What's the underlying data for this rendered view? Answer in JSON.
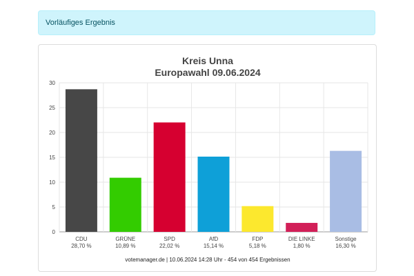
{
  "alert": {
    "text": "Vorläufiges Ergebnis"
  },
  "chart_data": {
    "type": "bar",
    "title": "Kreis Unna",
    "subtitle": "Europawahl 09.06.2024",
    "categories": [
      "CDU",
      "GRÜNE",
      "SPD",
      "AfD",
      "FDP",
      "DIE LINKE",
      "Sonstige"
    ],
    "value_labels": [
      "28,70 %",
      "10,89 %",
      "22,02 %",
      "15,14 %",
      "5,18 %",
      "1,80 %",
      "16,30 %"
    ],
    "values": [
      28.7,
      10.89,
      22.02,
      15.14,
      5.18,
      1.8,
      16.3
    ],
    "colors": [
      "#474747",
      "#33cc00",
      "#d60030",
      "#0ea0d8",
      "#fce82e",
      "#d21f58",
      "#a9bde4"
    ],
    "ylim": [
      0,
      30
    ],
    "yticks": [
      "0",
      "5",
      "10",
      "15",
      "20",
      "25",
      "30"
    ],
    "grid": true,
    "footer": "votemanager.de | 10.06.2024 14:28 Uhr - 454 von 454 Ergebnissen"
  }
}
